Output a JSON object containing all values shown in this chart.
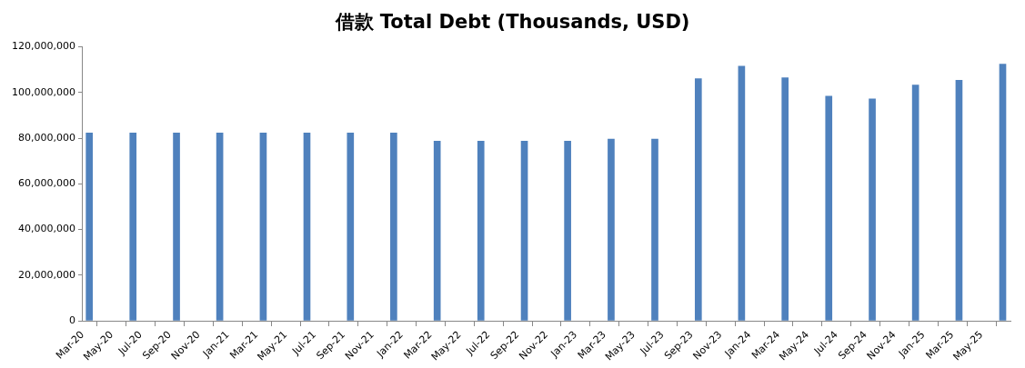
{
  "chart_data": {
    "type": "bar",
    "title": "借款 Total Debt (Thousands, USD)",
    "x": [
      "2020-03-15",
      "2020-06-15",
      "2020-09-15",
      "2020-12-15",
      "2021-03-15",
      "2021-06-15",
      "2021-09-15",
      "2021-12-15",
      "2022-03-15",
      "2022-06-15",
      "2022-09-15",
      "2022-12-15",
      "2023-03-15",
      "2023-06-15",
      "2023-09-15",
      "2023-12-15",
      "2024-03-15",
      "2024-06-15",
      "2024-09-15",
      "2024-12-15",
      "2025-03-15",
      "2025-06-15"
    ],
    "series": [
      {
        "color": "#4f81bd",
        "values": [
          82300000,
          82300000,
          82300000,
          82300000,
          82300000,
          82300000,
          82300000,
          82300000,
          78700000,
          78700000,
          78700000,
          78700000,
          79600000,
          79600000,
          106100000,
          111500000,
          106500000,
          98400000,
          97200000,
          103300000,
          105400000,
          112400000
        ]
      }
    ],
    "xlim": [
      "2020-03",
      "2025-07"
    ],
    "xticks": [
      {
        "value": "2020-03",
        "label": "Mar-20"
      },
      {
        "value": "2020-05",
        "label": "May-20"
      },
      {
        "value": "2020-07",
        "label": "Jul-20"
      },
      {
        "value": "2020-09",
        "label": "Sep-20"
      },
      {
        "value": "2020-11",
        "label": "Nov-20"
      },
      {
        "value": "2021-01",
        "label": "Jan-21"
      },
      {
        "value": "2021-03",
        "label": "Mar-21"
      },
      {
        "value": "2021-05",
        "label": "May-21"
      },
      {
        "value": "2021-07",
        "label": "Jul-21"
      },
      {
        "value": "2021-09",
        "label": "Sep-21"
      },
      {
        "value": "2021-11",
        "label": "Nov-21"
      },
      {
        "value": "2022-01",
        "label": "Jan-22"
      },
      {
        "value": "2022-03",
        "label": "Mar-22"
      },
      {
        "value": "2022-05",
        "label": "May-22"
      },
      {
        "value": "2022-07",
        "label": "Jul-22"
      },
      {
        "value": "2022-09",
        "label": "Sep-22"
      },
      {
        "value": "2022-11",
        "label": "Nov-22"
      },
      {
        "value": "2023-01",
        "label": "Jan-23"
      },
      {
        "value": "2023-03",
        "label": "Mar-23"
      },
      {
        "value": "2023-05",
        "label": "May-23"
      },
      {
        "value": "2023-07",
        "label": "Jul-23"
      },
      {
        "value": "2023-09",
        "label": "Sep-23"
      },
      {
        "value": "2023-11",
        "label": "Nov-23"
      },
      {
        "value": "2024-01",
        "label": "Jan-24"
      },
      {
        "value": "2024-03",
        "label": "Mar-24"
      },
      {
        "value": "2024-05",
        "label": "May-24"
      },
      {
        "value": "2024-07",
        "label": "Jul-24"
      },
      {
        "value": "2024-09",
        "label": "Sep-24"
      },
      {
        "value": "2024-11",
        "label": "Nov-24"
      },
      {
        "value": "2025-01",
        "label": "Jan-25"
      },
      {
        "value": "2025-03",
        "label": "Mar-25"
      },
      {
        "value": "2025-05",
        "label": "May-25"
      }
    ],
    "ylim": [
      0,
      120000000
    ],
    "yticks": [
      {
        "value": 0,
        "label": "0"
      },
      {
        "value": 20000000,
        "label": "20,000,000"
      },
      {
        "value": 40000000,
        "label": "40,000,000"
      },
      {
        "value": 60000000,
        "label": "60,000,000"
      },
      {
        "value": 80000000,
        "label": "80,000,000"
      },
      {
        "value": 100000000,
        "label": "100,000,000"
      },
      {
        "value": 120000000,
        "label": "120,000,000"
      }
    ],
    "grid": false,
    "legend": false
  }
}
